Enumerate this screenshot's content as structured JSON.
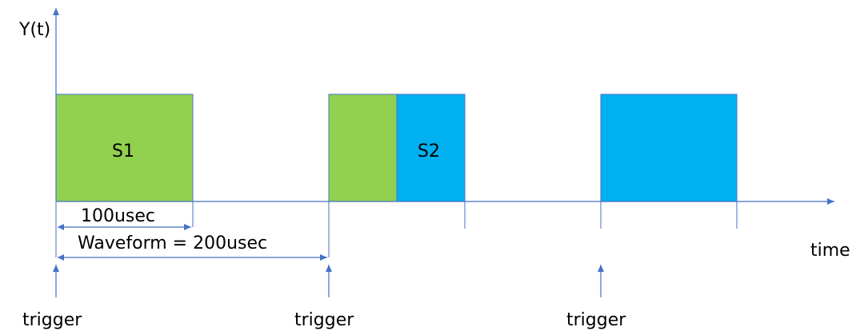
{
  "labels": {
    "y_axis": "Y(t)",
    "x_axis": "time",
    "s1": "S1",
    "s2": "S2",
    "width_100": "100usec",
    "waveform": "Waveform = 200usec",
    "trigger": "trigger"
  },
  "colors": {
    "axis": "#4472c4",
    "green": "#92d050",
    "blue": "#00b0f0",
    "text": "#000000"
  }
}
